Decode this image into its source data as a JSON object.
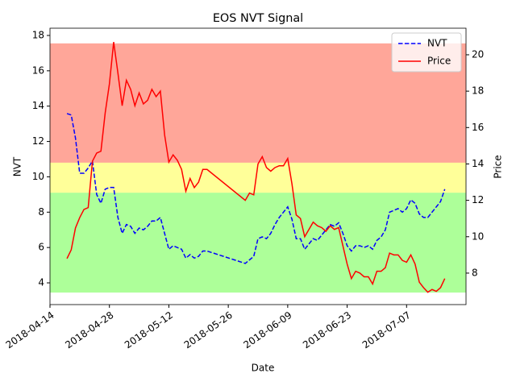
{
  "chart_data": {
    "type": "line",
    "title": "EOS NVT Signal",
    "xlabel": "Date",
    "ylabel": "NVT",
    "y2label": "Price",
    "x": [
      "2018-04-18",
      "2018-04-19",
      "2018-04-20",
      "2018-04-21",
      "2018-04-22",
      "2018-04-23",
      "2018-04-24",
      "2018-04-25",
      "2018-04-26",
      "2018-04-27",
      "2018-04-28",
      "2018-04-29",
      "2018-04-30",
      "2018-05-01",
      "2018-05-02",
      "2018-05-03",
      "2018-05-04",
      "2018-05-05",
      "2018-05-06",
      "2018-05-07",
      "2018-05-08",
      "2018-05-09",
      "2018-05-10",
      "2018-05-11",
      "2018-05-12",
      "2018-05-13",
      "2018-05-14",
      "2018-05-15",
      "2018-05-16",
      "2018-05-17",
      "2018-05-18",
      "2018-05-19",
      "2018-05-20",
      "2018-05-21",
      "2018-05-30",
      "2018-05-31",
      "2018-06-01",
      "2018-06-02",
      "2018-06-03",
      "2018-06-04",
      "2018-06-05",
      "2018-06-06",
      "2018-06-07",
      "2018-06-08",
      "2018-06-09",
      "2018-06-10",
      "2018-06-11",
      "2018-06-12",
      "2018-06-13",
      "2018-06-14",
      "2018-06-15",
      "2018-06-16",
      "2018-06-17",
      "2018-06-18",
      "2018-06-19",
      "2018-06-20",
      "2018-06-21",
      "2018-06-22",
      "2018-06-23",
      "2018-06-24",
      "2018-06-25",
      "2018-06-26",
      "2018-06-27",
      "2018-06-28",
      "2018-06-29",
      "2018-06-30",
      "2018-07-01",
      "2018-07-02",
      "2018-07-03",
      "2018-07-04",
      "2018-07-05",
      "2018-07-06",
      "2018-07-07",
      "2018-07-08",
      "2018-07-09",
      "2018-07-10",
      "2018-07-11",
      "2018-07-12",
      "2018-07-13",
      "2018-07-14",
      "2018-07-15",
      "2018-07-16"
    ],
    "series": [
      {
        "name": "NVT",
        "color": "#0000ff",
        "linestyle": "dashed",
        "axis": "y",
        "values": [
          13.58,
          13.5,
          12.2,
          10.2,
          10.2,
          10.5,
          10.9,
          9.0,
          8.5,
          9.3,
          9.4,
          9.4,
          7.7,
          6.8,
          7.3,
          7.2,
          6.8,
          7.1,
          7.0,
          7.2,
          7.5,
          7.5,
          7.7,
          6.8,
          5.9,
          6.1,
          6.0,
          5.9,
          5.4,
          5.6,
          5.4,
          5.5,
          5.8,
          5.8,
          5.1,
          5.3,
          5.5,
          6.5,
          6.6,
          6.5,
          6.8,
          7.3,
          7.7,
          8.0,
          8.3,
          7.6,
          6.5,
          6.5,
          5.9,
          6.2,
          6.5,
          6.4,
          6.7,
          7.0,
          7.3,
          7.2,
          7.4,
          6.8,
          6.1,
          5.8,
          6.1,
          6.1,
          6.0,
          6.1,
          5.9,
          6.4,
          6.6,
          7.0,
          8.0,
          8.1,
          8.2,
          8.0,
          8.2,
          8.7,
          8.5,
          7.9,
          7.7,
          7.7,
          8.0,
          8.3,
          8.6,
          9.3
        ]
      },
      {
        "name": "Price",
        "color": "#ff0000",
        "linestyle": "solid",
        "axis": "y2",
        "values": [
          8.8,
          9.28,
          10.48,
          11.05,
          11.5,
          11.6,
          14.15,
          14.6,
          14.7,
          16.8,
          18.4,
          20.7,
          19.0,
          17.2,
          18.6,
          18.1,
          17.2,
          17.9,
          17.3,
          17.5,
          18.1,
          17.7,
          18.0,
          15.6,
          14.1,
          14.5,
          14.2,
          13.7,
          12.5,
          13.2,
          12.7,
          13.0,
          13.7,
          13.7,
          12.0,
          12.4,
          12.3,
          14.0,
          14.4,
          13.8,
          13.6,
          13.8,
          13.9,
          13.9,
          14.3,
          12.9,
          11.2,
          11.0,
          10.0,
          10.4,
          10.8,
          10.6,
          10.5,
          10.3,
          10.6,
          10.4,
          10.5,
          9.5,
          8.5,
          7.7,
          8.1,
          8.0,
          7.8,
          7.8,
          7.4,
          8.1,
          8.1,
          8.3,
          9.1,
          9.0,
          9.0,
          8.7,
          8.6,
          9.0,
          8.5,
          7.5,
          7.2,
          6.95,
          7.1,
          7.0,
          7.2,
          7.7
        ]
      }
    ],
    "bands": [
      {
        "from": 10.8,
        "to": 17.55,
        "color": "#ff4d33",
        "alpha": 0.5
      },
      {
        "from": 9.1,
        "to": 10.8,
        "color": "#ffff00",
        "alpha": 0.4
      },
      {
        "from": 3.45,
        "to": 9.1,
        "color": "#33ff00",
        "alpha": 0.4
      }
    ],
    "xlim": [
      "2018-04-14",
      "2018-07-21"
    ],
    "xticks": [
      "2018-04-14",
      "2018-04-28",
      "2018-05-12",
      "2018-05-26",
      "2018-06-09",
      "2018-06-23",
      "2018-07-07"
    ],
    "ylim": [
      2.77,
      18.41
    ],
    "yticks": [
      4,
      6,
      8,
      10,
      12,
      14,
      16,
      18
    ],
    "y2lim": [
      6.27,
      21.46
    ],
    "y2ticks": [
      8,
      10,
      12,
      14,
      16,
      18,
      20
    ],
    "legend": "upper right"
  }
}
